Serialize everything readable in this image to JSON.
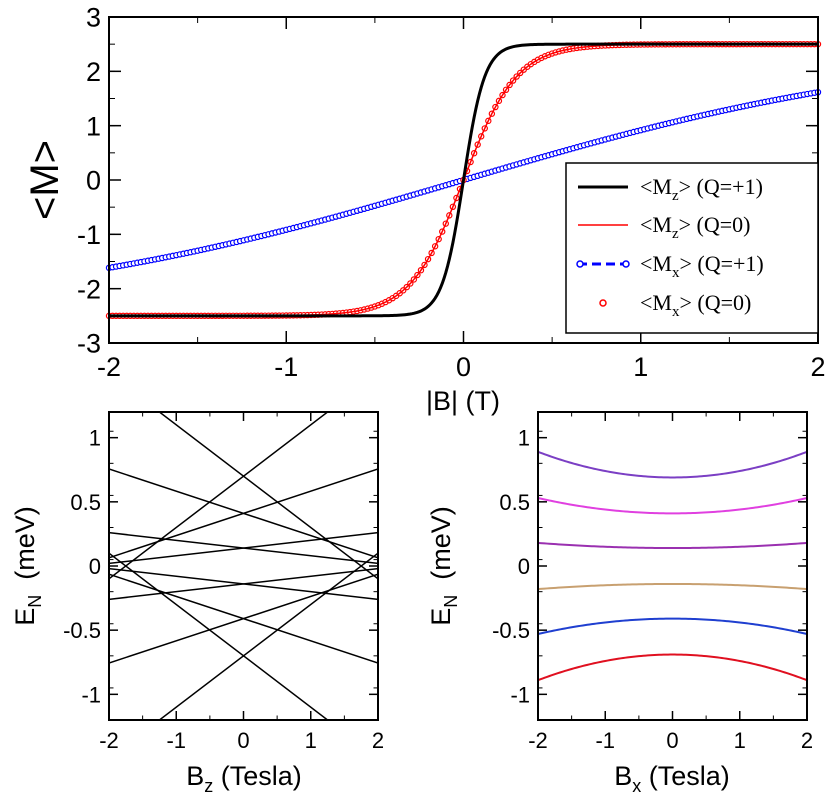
{
  "chart_data": [
    {
      "type": "line",
      "id": "top",
      "ylabel": "<M>",
      "xlabel": "|B| (T)",
      "xlim": [
        -2,
        2
      ],
      "ylim": [
        -3,
        3
      ],
      "xticks": [
        "-2",
        "-1",
        "0",
        "1",
        "2"
      ],
      "yticks": [
        "-3",
        "-2",
        "-1",
        "0",
        "1",
        "2",
        "3"
      ],
      "xtick_values": [
        -2,
        -1,
        0,
        1,
        2
      ],
      "ytick_values": [
        -3,
        -2,
        -1,
        0,
        1,
        2,
        3
      ],
      "series": [
        {
          "name": "Mz_Q1",
          "legend": {
            "pre": "<M",
            "sub": "z",
            "post": "> (Q=+1)"
          },
          "color": "#000000",
          "style": "solid",
          "amplitude": 2.5,
          "scale": 0.12
        },
        {
          "name": "Mz_Q0",
          "legend": {
            "pre": "<M",
            "sub": "z",
            "post": "> (Q=0)"
          },
          "color": "#ff0000",
          "style": "solid",
          "amplitude": 2.5,
          "scale": 0.3
        },
        {
          "name": "Mx_Q1",
          "legend": {
            "pre": "<M",
            "sub": "x",
            "post": "> (Q=+1)"
          },
          "color": "#0000ff",
          "style": "dashed-markers",
          "amplitude": 2.5,
          "scale": 2.6
        },
        {
          "name": "Mx_Q0",
          "legend": {
            "pre": "<M",
            "sub": "x",
            "post": "> (Q=0)"
          },
          "color": "#ff0000",
          "style": "markers",
          "amplitude": 2.5,
          "scale": 0.3
        }
      ]
    },
    {
      "type": "line",
      "id": "bottom-left",
      "ylabel": {
        "pre": "E",
        "sub": "N",
        "post": "  (meV)"
      },
      "xlabel": {
        "pre": "B",
        "sub": "z",
        "post": " (Tesla)"
      },
      "xlim": [
        -2,
        2
      ],
      "ylim": [
        -1.2,
        1.2
      ],
      "xticks": [
        "-2",
        "-1",
        "0",
        "1",
        "2"
      ],
      "yticks": [
        "-1",
        "-0.5",
        "0",
        "0.5",
        "1"
      ],
      "xtick_values": [
        -2,
        -1,
        0,
        1,
        2
      ],
      "ytick_values": [
        -1,
        -0.5,
        0,
        0.5,
        1
      ],
      "lines": [
        {
          "intercept": 0.7,
          "slope": 0.4
        },
        {
          "intercept": 0.7,
          "slope": -0.4
        },
        {
          "intercept": -0.7,
          "slope": 0.4
        },
        {
          "intercept": -0.7,
          "slope": -0.4
        },
        {
          "intercept": 0.41,
          "slope": 0.173
        },
        {
          "intercept": 0.41,
          "slope": -0.173
        },
        {
          "intercept": -0.41,
          "slope": 0.173
        },
        {
          "intercept": -0.41,
          "slope": -0.173
        },
        {
          "intercept": 0.14,
          "slope": 0.06
        },
        {
          "intercept": 0.14,
          "slope": -0.06
        },
        {
          "intercept": -0.14,
          "slope": 0.06
        },
        {
          "intercept": -0.14,
          "slope": -0.06
        }
      ]
    },
    {
      "type": "line",
      "id": "bottom-right",
      "ylabel": {
        "pre": "E",
        "sub": "N",
        "post": "  (meV)"
      },
      "xlabel": {
        "pre": "B",
        "sub": "x",
        "post": " (Tesla)"
      },
      "xlim": [
        -2,
        2
      ],
      "ylim": [
        -1.2,
        1.2
      ],
      "xticks": [
        "-2",
        "-1",
        "0",
        "1",
        "2"
      ],
      "yticks": [
        "-1",
        "-0.5",
        "0",
        "0.5",
        "1"
      ],
      "xtick_values": [
        -2,
        -1,
        0,
        1,
        2
      ],
      "ytick_values": [
        -1,
        -0.5,
        0,
        0.5,
        1
      ],
      "curves": [
        {
          "e0": 0.69,
          "e2": 0.89,
          "color": "#7b3fc4"
        },
        {
          "e0": 0.41,
          "e2": 0.53,
          "color": "#e040e0"
        },
        {
          "e0": 0.14,
          "e2": 0.18,
          "color": "#9a30b0"
        },
        {
          "e0": -0.14,
          "e2": -0.18,
          "color": "#c8a070"
        },
        {
          "e0": -0.41,
          "e2": -0.53,
          "color": "#1f3fd0"
        },
        {
          "e0": -0.69,
          "e2": -0.89,
          "color": "#e01020"
        }
      ]
    }
  ]
}
